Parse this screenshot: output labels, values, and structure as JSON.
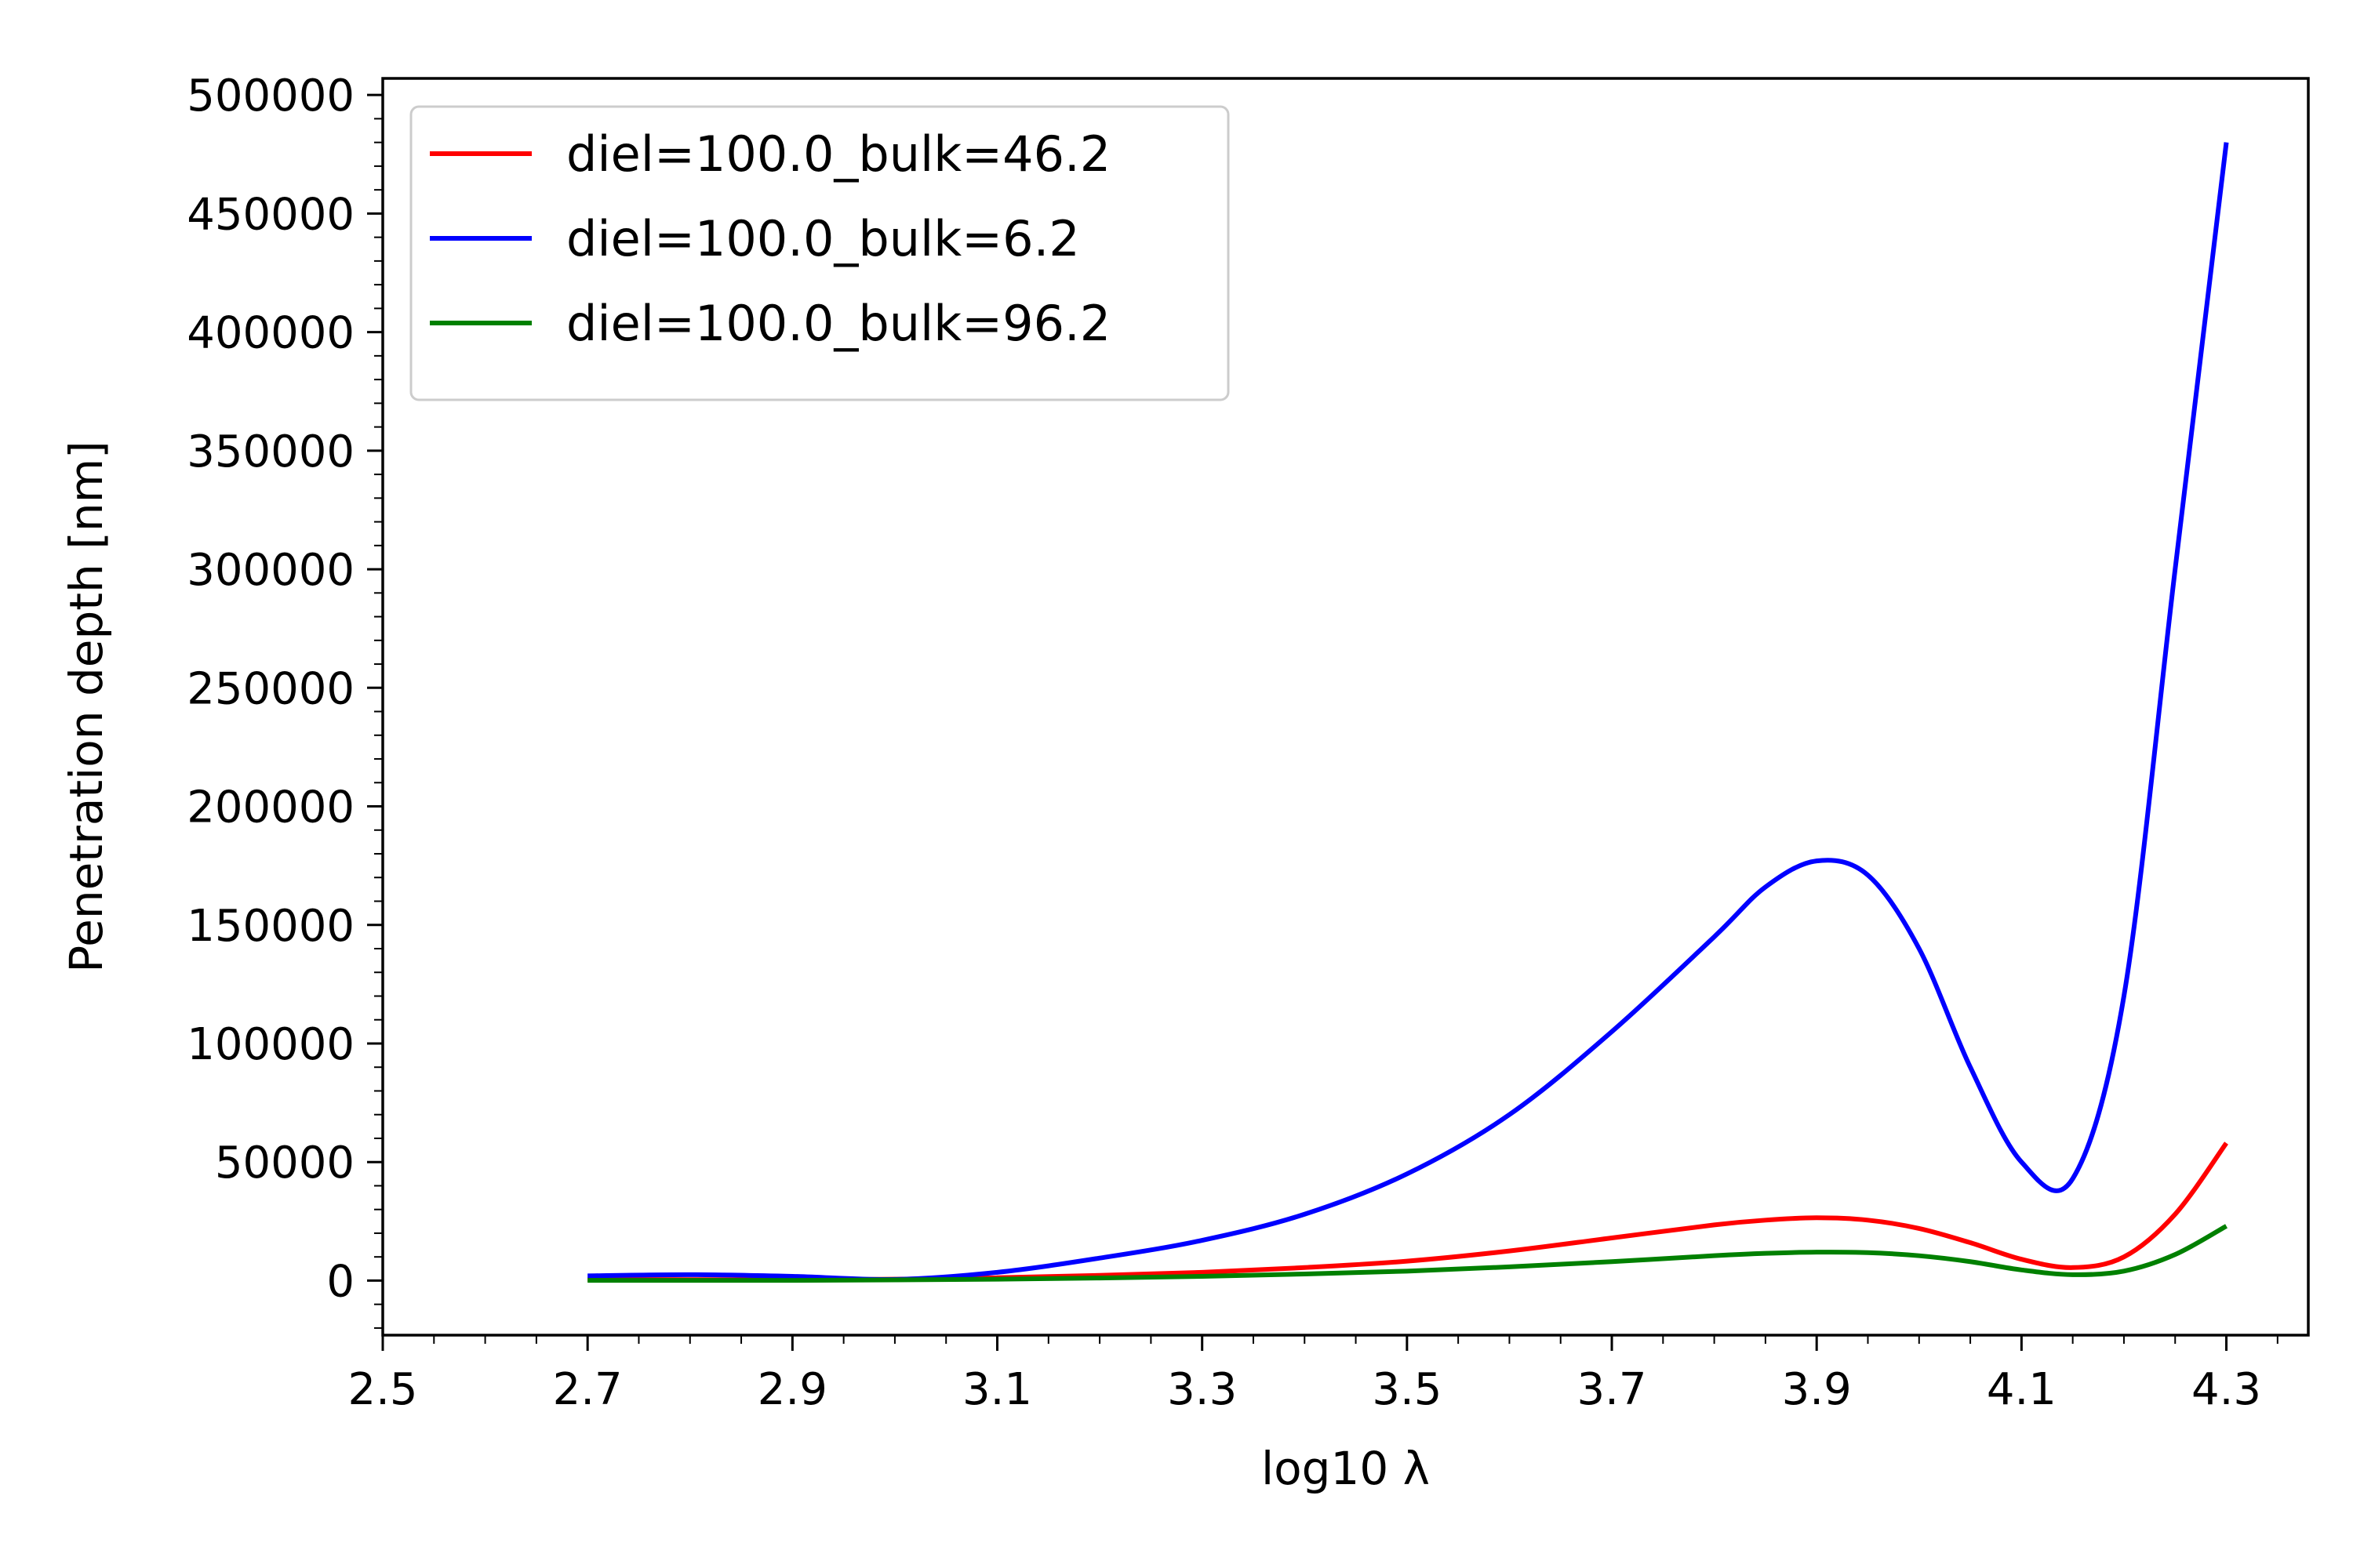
{
  "chart_data": {
    "type": "line",
    "title": "",
    "xlabel": "log10 λ",
    "ylabel": "Penetration depth [nm]",
    "xlim": [
      2.5,
      4.38
    ],
    "ylim": [
      -23000,
      507000
    ],
    "xticks": [
      2.5,
      2.7,
      2.9,
      3.1,
      3.3,
      3.5,
      3.7,
      3.9,
      4.1,
      4.3
    ],
    "xtick_labels": [
      "2.5",
      "2.7",
      "2.9",
      "3.1",
      "3.3",
      "3.5",
      "3.7",
      "3.9",
      "4.1",
      "4.3"
    ],
    "yticks": [
      0,
      50000,
      100000,
      150000,
      200000,
      250000,
      300000,
      350000,
      400000,
      450000,
      500000
    ],
    "ytick_labels": [
      "0",
      "50000",
      "100000",
      "150000",
      "200000",
      "250000",
      "300000",
      "350000",
      "400000",
      "450000",
      "500000"
    ],
    "grid": false,
    "legend_position": "top-left",
    "series": [
      {
        "name": "diel=100.0_bulk=46.2",
        "color": "#ff0000",
        "x": [
          2.7,
          2.8,
          2.9,
          3.0,
          3.1,
          3.2,
          3.3,
          3.4,
          3.5,
          3.6,
          3.7,
          3.8,
          3.85,
          3.9,
          3.95,
          4.0,
          4.05,
          4.1,
          4.15,
          4.2,
          4.25,
          4.3
        ],
        "y": [
          500,
          400,
          300,
          600,
          1200,
          2200,
          3500,
          5500,
          8200,
          12500,
          18000,
          23500,
          25500,
          26500,
          25500,
          22000,
          16000,
          9000,
          5500,
          10000,
          28000,
          58000
        ]
      },
      {
        "name": "diel=100.0_bulk=6.2",
        "color": "#0000ff",
        "x": [
          2.7,
          2.8,
          2.9,
          3.0,
          3.1,
          3.2,
          3.3,
          3.4,
          3.5,
          3.6,
          3.7,
          3.8,
          3.85,
          3.9,
          3.95,
          4.0,
          4.05,
          4.1,
          4.15,
          4.2,
          4.25,
          4.3
        ],
        "y": [
          2000,
          2500,
          1800,
          500,
          3500,
          9500,
          17000,
          28000,
          45000,
          70000,
          105000,
          145000,
          166000,
          177000,
          171000,
          140000,
          90000,
          50000,
          43000,
          120000,
          300000,
          480000
        ]
      },
      {
        "name": "diel=100.0_bulk=96.2",
        "color": "#008000",
        "x": [
          2.7,
          2.8,
          2.9,
          3.0,
          3.1,
          3.2,
          3.3,
          3.4,
          3.5,
          3.6,
          3.7,
          3.8,
          3.85,
          3.9,
          3.95,
          4.0,
          4.05,
          4.1,
          4.15,
          4.2,
          4.25,
          4.3
        ],
        "y": [
          100,
          100,
          100,
          300,
          600,
          1100,
          1800,
          2800,
          4000,
          5800,
          8000,
          10500,
          11500,
          12000,
          11800,
          10500,
          8000,
          4500,
          2500,
          4000,
          11000,
          23000
        ]
      }
    ]
  }
}
